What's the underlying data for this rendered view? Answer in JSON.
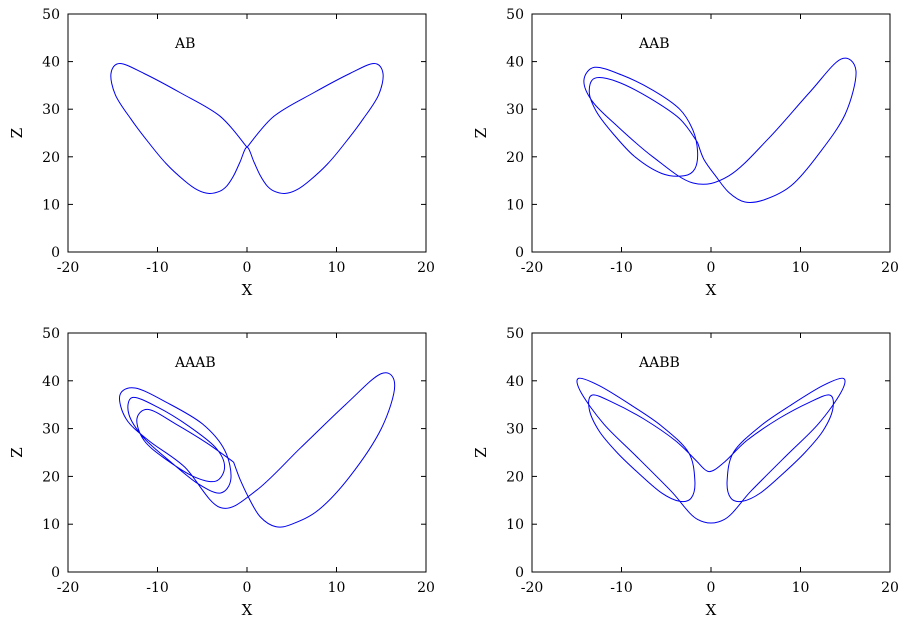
{
  "chart_data": [
    {
      "type": "line",
      "title": "",
      "annotation": "AB",
      "xlabel": "X",
      "ylabel": "Z",
      "xlim": [
        -20,
        20
      ],
      "ylim": [
        0,
        50
      ],
      "xticks": [
        -20,
        -10,
        0,
        10,
        20
      ],
      "yticks": [
        0,
        10,
        20,
        30,
        40,
        50
      ],
      "grid": false,
      "series": [
        {
          "color": "#0000ee",
          "x": [
            0.0,
            3.0,
            7.5,
            11.5,
            14.2,
            15.2,
            14.7,
            13.0,
            11.0,
            9.0,
            7.0,
            5.5,
            4.2,
            3.0,
            2.2,
            1.5,
            0.8,
            0.0,
            -0.8,
            -1.5,
            -2.2,
            -3.0,
            -4.2,
            -5.5,
            -7.0,
            -9.0,
            -11.0,
            -13.0,
            -14.7,
            -15.2,
            -14.2,
            -11.5,
            -7.5,
            -3.0,
            0.0
          ],
          "y": [
            22.0,
            28.5,
            33.5,
            37.5,
            39.6,
            37.5,
            33.0,
            28.0,
            23.0,
            18.5,
            15.0,
            13.0,
            12.3,
            12.8,
            14.0,
            16.0,
            18.8,
            22.0,
            18.8,
            16.0,
            14.0,
            12.8,
            12.3,
            13.0,
            15.0,
            18.5,
            23.0,
            28.0,
            33.0,
            37.5,
            39.6,
            37.5,
            33.5,
            28.5,
            22.0
          ]
        }
      ]
    },
    {
      "type": "line",
      "title": "",
      "annotation": "AAB",
      "xlabel": "X",
      "ylabel": "Z",
      "xlim": [
        -20,
        20
      ],
      "ylim": [
        0,
        50
      ],
      "xticks": [
        -20,
        -10,
        0,
        10,
        20
      ],
      "yticks": [
        0,
        10,
        20,
        30,
        40,
        50
      ],
      "grid": false,
      "series": [
        {
          "color": "#0000ee",
          "x": [
            -1.5,
            -3.5,
            -7.0,
            -10.5,
            -13.0,
            -13.6,
            -12.8,
            -11.0,
            -8.5,
            -5.5,
            -3.0,
            -1.8,
            -1.5,
            -2.0,
            -3.5,
            -6.5,
            -10.0,
            -13.0,
            -14.2,
            -13.2,
            -10.5,
            -6.5,
            -2.0,
            2.0,
            6.5,
            11.0,
            14.5,
            16.2,
            15.0,
            12.0,
            9.0,
            6.0,
            3.8,
            2.0,
            0.5,
            -0.8,
            -1.5
          ],
          "y": [
            23.0,
            28.0,
            32.5,
            35.8,
            36.5,
            33.5,
            29.5,
            25.0,
            20.0,
            16.5,
            16.0,
            17.5,
            21.0,
            25.5,
            30.0,
            34.0,
            37.2,
            38.8,
            36.0,
            31.5,
            26.5,
            20.0,
            14.5,
            16.0,
            24.0,
            33.5,
            40.5,
            38.0,
            29.0,
            20.5,
            14.0,
            11.0,
            10.5,
            12.5,
            16.0,
            19.5,
            23.0
          ]
        }
      ]
    },
    {
      "type": "line",
      "title": "",
      "annotation": "AAAB",
      "xlabel": "X",
      "ylabel": "Z",
      "xlim": [
        -20,
        20
      ],
      "ylim": [
        0,
        50
      ],
      "xticks": [
        -20,
        -10,
        0,
        10,
        20
      ],
      "yticks": [
        0,
        10,
        20,
        30,
        40,
        50
      ],
      "grid": false,
      "series": [
        {
          "color": "#0000ee",
          "x": [
            -1.5,
            -4.5,
            -8.0,
            -11.0,
            -12.3,
            -11.5,
            -9.0,
            -6.0,
            -3.5,
            -2.5,
            -3.5,
            -6.5,
            -10.0,
            -12.8,
            -13.2,
            -11.5,
            -8.5,
            -5.5,
            -3.0,
            -1.8,
            -2.5,
            -5.0,
            -9.0,
            -12.5,
            -14.2,
            -13.5,
            -11.0,
            -7.0,
            -3.0,
            1.0,
            6.0,
            11.0,
            15.0,
            16.5,
            15.0,
            11.5,
            8.0,
            5.0,
            3.2,
            1.5,
            0.2,
            -0.8,
            -1.5
          ],
          "y": [
            23.0,
            27.0,
            31.0,
            34.0,
            32.0,
            27.5,
            23.5,
            20.0,
            19.0,
            22.0,
            26.0,
            30.5,
            34.5,
            36.5,
            33.0,
            28.0,
            23.0,
            18.5,
            16.5,
            19.5,
            25.5,
            31.0,
            35.5,
            38.5,
            37.0,
            32.0,
            27.5,
            22.0,
            13.5,
            17.0,
            26.0,
            35.0,
            41.5,
            39.0,
            30.0,
            20.0,
            13.0,
            10.0,
            9.5,
            11.5,
            15.5,
            19.5,
            23.0
          ]
        }
      ]
    },
    {
      "type": "line",
      "title": "",
      "annotation": "AABB",
      "xlabel": "X",
      "ylabel": "Z",
      "xlim": [
        -20,
        20
      ],
      "ylim": [
        0,
        50
      ],
      "xticks": [
        -20,
        -10,
        0,
        10,
        20
      ],
      "yticks": [
        0,
        10,
        20,
        30,
        40,
        50
      ],
      "grid": false,
      "series": [
        {
          "color": "#0000ee",
          "x": [
            -1.5,
            -4.0,
            -7.5,
            -11.0,
            -13.3,
            -13.6,
            -12.5,
            -10.5,
            -8.0,
            -5.5,
            -3.5,
            -2.2,
            -1.8,
            -2.5,
            -5.5,
            -9.0,
            -12.5,
            -14.8,
            -14.5,
            -12.0,
            -8.5,
            -4.5,
            -1.5,
            1.5,
            4.5,
            8.5,
            12.0,
            14.5,
            14.8,
            12.5,
            9.0,
            5.5,
            2.5,
            1.8,
            2.2,
            3.5,
            5.5,
            8.0,
            10.5,
            12.5,
            13.6,
            13.3,
            11.0,
            7.5,
            4.0,
            1.5,
            -0.2,
            -1.5
          ],
          "y": [
            23.0,
            27.5,
            32.0,
            35.5,
            37.0,
            34.0,
            29.5,
            25.0,
            20.5,
            16.5,
            14.8,
            15.5,
            19.0,
            25.0,
            30.5,
            35.0,
            39.0,
            40.5,
            37.5,
            31.0,
            24.5,
            17.0,
            11.0,
            11.0,
            17.0,
            24.5,
            31.0,
            37.5,
            40.5,
            39.0,
            35.0,
            30.5,
            25.0,
            19.0,
            15.5,
            14.8,
            16.5,
            20.5,
            25.0,
            29.5,
            34.0,
            37.0,
            35.5,
            32.0,
            27.5,
            23.0,
            21.0,
            23.0
          ]
        }
      ]
    }
  ]
}
